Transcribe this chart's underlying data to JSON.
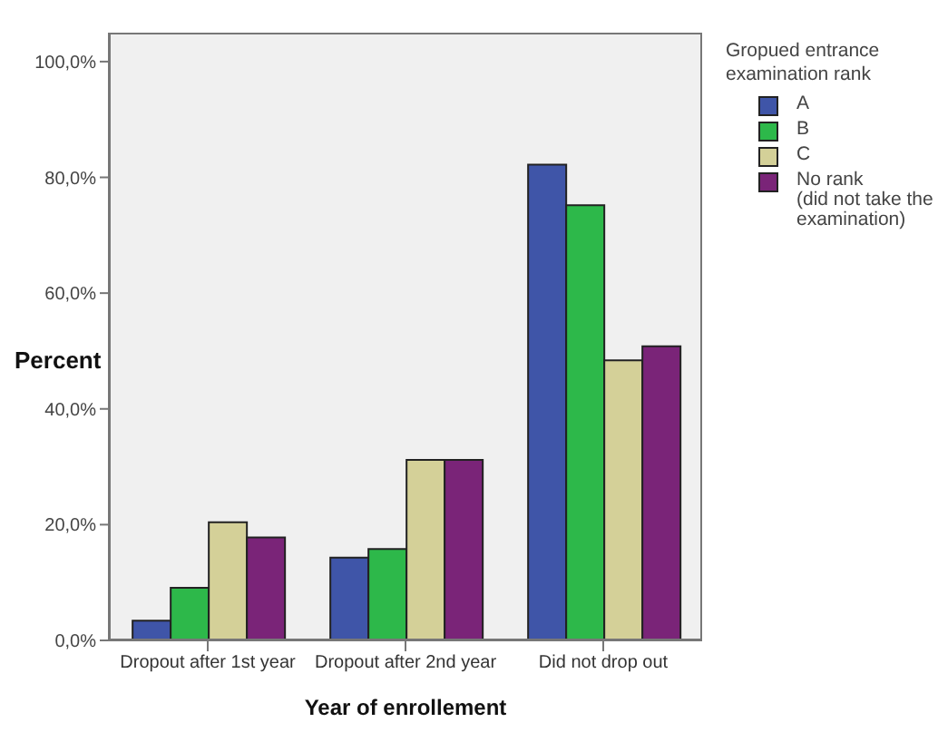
{
  "chart_data": {
    "type": "bar",
    "xlabel": "Year of enrollement",
    "ylabel": "Percent",
    "legend_title": "Gropued entrance examination rank",
    "categories": [
      "Dropout after 1st year",
      "Dropout after 2nd year",
      "Did not drop out"
    ],
    "series": [
      {
        "name": "A",
        "color": "#3f55a8",
        "values": [
          3.4,
          14.3,
          82.2
        ]
      },
      {
        "name": "B",
        "color": "#2db84a",
        "values": [
          9.1,
          15.8,
          75.2
        ]
      },
      {
        "name": "C",
        "color": "#d4d098",
        "values": [
          20.4,
          31.2,
          48.4
        ]
      },
      {
        "name": "No rank\n(did not take the\nexamination)",
        "color": "#7a2478",
        "values": [
          17.8,
          31.2,
          50.8
        ]
      }
    ],
    "ylim": [
      0,
      105
    ],
    "yticks": [
      {
        "value": 0,
        "label": "0,0%"
      },
      {
        "value": 20,
        "label": "20,0%"
      },
      {
        "value": 40,
        "label": "40,0%"
      },
      {
        "value": 60,
        "label": "60,0%"
      },
      {
        "value": 80,
        "label": "80,0%"
      },
      {
        "value": 100,
        "label": "100,0%"
      }
    ],
    "grid": false,
    "legend": "top right"
  }
}
